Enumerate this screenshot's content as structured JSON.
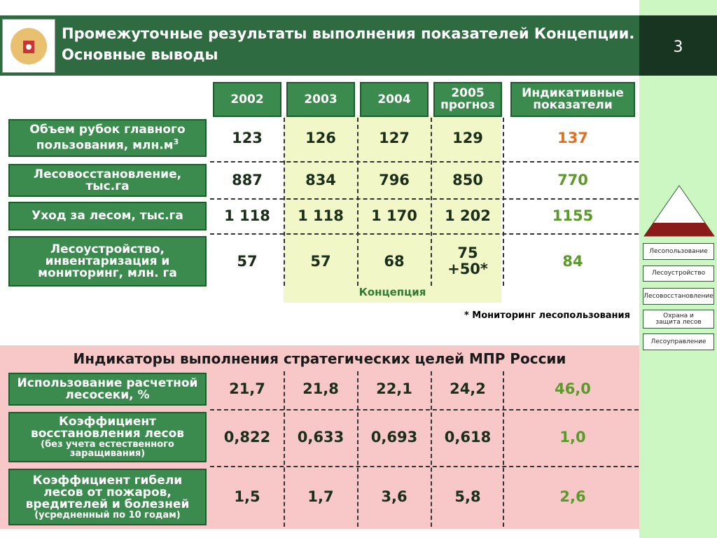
{
  "header": {
    "title": "Промежуточные результаты выполнения показателей Концепции. Основные выводы",
    "page_number": "3"
  },
  "table1": {
    "columns": [
      "2002",
      "2003",
      "2004",
      "2005 прогноз",
      "Индикативные показатели"
    ],
    "rows": [
      {
        "label": "Объем рубок главного пользования, млн.м",
        "label_sup": "3",
        "values": [
          "123",
          "126",
          "127",
          "129",
          "137"
        ]
      },
      {
        "label": "Лесовосстановление, тыс.га",
        "values": [
          "887",
          "834",
          "796",
          "850",
          "770"
        ]
      },
      {
        "label": "Уход за лесом, тыс.га",
        "values": [
          "1 118",
          "1 118",
          "1 170",
          "1 202",
          "1155"
        ]
      },
      {
        "label": "Лесоустройство, инвентаризация и мониторинг, млн. га",
        "values": [
          "57",
          "57",
          "68",
          [
            "75",
            "+50*"
          ],
          "84"
        ]
      }
    ],
    "highlight_label": "Концепция",
    "footnote": "* Мониторинг лесопользования"
  },
  "table2": {
    "title": "Индикаторы выполнения стратегических целей МПР России",
    "rows": [
      {
        "label": "Использование расчетной лесосеки, %",
        "values": [
          "21,7",
          "21,8",
          "22,1",
          "24,2",
          "46,0"
        ]
      },
      {
        "label": "Коэффициент восстановления лесов",
        "sublabel": "(без учета естественного заращивания)",
        "values": [
          "0,822",
          "0,633",
          "0,693",
          "0,618",
          "1,0"
        ]
      },
      {
        "label": "Коэффициент гибели лесов от пожаров, вредителей и болезней",
        "sublabel": "(усредненный по 10 годам)",
        "values": [
          "1,5",
          "1,7",
          "3,6",
          "5,8",
          "2,6"
        ]
      }
    ]
  },
  "sidebar": {
    "items": [
      "Лесопользование",
      "Лесоустройство",
      "Лесовосстановление",
      "Охрана и защита лесов",
      "Лесоуправление"
    ]
  }
}
